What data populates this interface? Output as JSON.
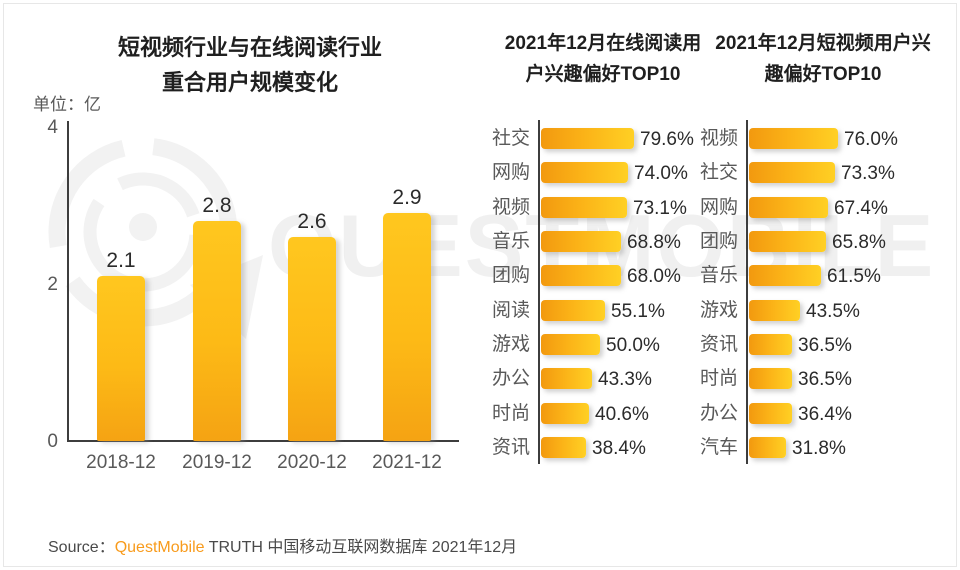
{
  "watermark": {
    "text": "QUESTMOBILE",
    "logo": "questmobile-circle-logo",
    "color": "#f0f0f0"
  },
  "colors": {
    "bar_orange_dark": "#F2990F",
    "bar_orange_light": "#FFD024",
    "brand_orange": "#F89B1C",
    "text_dark": "#2b2b2b",
    "text_gray": "#595959"
  },
  "chart_data": [
    {
      "id": "overlap-user-scale",
      "type": "bar",
      "title_lines": [
        "短视频行业与在线阅读行业",
        "重合用户规模变化"
      ],
      "unit": "单位：亿",
      "categories": [
        "2018-12",
        "2019-12",
        "2020-12",
        "2021-12"
      ],
      "values": [
        2.1,
        2.8,
        2.6,
        2.9
      ],
      "value_labels": [
        "2.1",
        "2.8",
        "2.6",
        "2.9"
      ],
      "ylabel": "亿",
      "ylim": [
        0,
        4
      ],
      "y_ticks": [
        4,
        2,
        0
      ],
      "grid": false,
      "legend": "none"
    },
    {
      "id": "online-reading-interest-top10",
      "type": "bar-horizontal",
      "title_lines": [
        "2021年12月在线阅读用",
        "户兴趣偏好TOP10"
      ],
      "categories": [
        "社交",
        "网购",
        "视频",
        "音乐",
        "团购",
        "阅读",
        "游戏",
        "办公",
        "时尚",
        "资讯"
      ],
      "values": [
        79.6,
        74.0,
        73.1,
        68.8,
        68.0,
        55.1,
        50.0,
        43.3,
        40.6,
        38.4
      ],
      "value_labels": [
        "79.6%",
        "74.0%",
        "73.1%",
        "68.8%",
        "68.0%",
        "55.1%",
        "50.0%",
        "43.3%",
        "40.6%",
        "38.4%"
      ],
      "xlim": [
        0,
        100
      ],
      "grid": false,
      "legend": "none"
    },
    {
      "id": "short-video-interest-top10",
      "type": "bar-horizontal",
      "title_lines": [
        "2021年12月短视频用户兴",
        "趣偏好TOP10"
      ],
      "categories": [
        "视频",
        "社交",
        "网购",
        "团购",
        "音乐",
        "游戏",
        "资讯",
        "时尚",
        "办公",
        "汽车"
      ],
      "values": [
        76.0,
        73.3,
        67.4,
        65.8,
        61.5,
        43.5,
        36.5,
        36.5,
        36.4,
        31.8
      ],
      "value_labels": [
        "76.0%",
        "73.3%",
        "67.4%",
        "65.8%",
        "61.5%",
        "43.5%",
        "36.5%",
        "36.5%",
        "36.4%",
        "31.8%"
      ],
      "xlim": [
        0,
        100
      ],
      "grid": false,
      "legend": "none"
    }
  ],
  "footer": {
    "source_label": "Source：",
    "brand": "QuestMobile",
    "rest": " TRUTH 中国移动互联网数据库 2021年12月"
  }
}
